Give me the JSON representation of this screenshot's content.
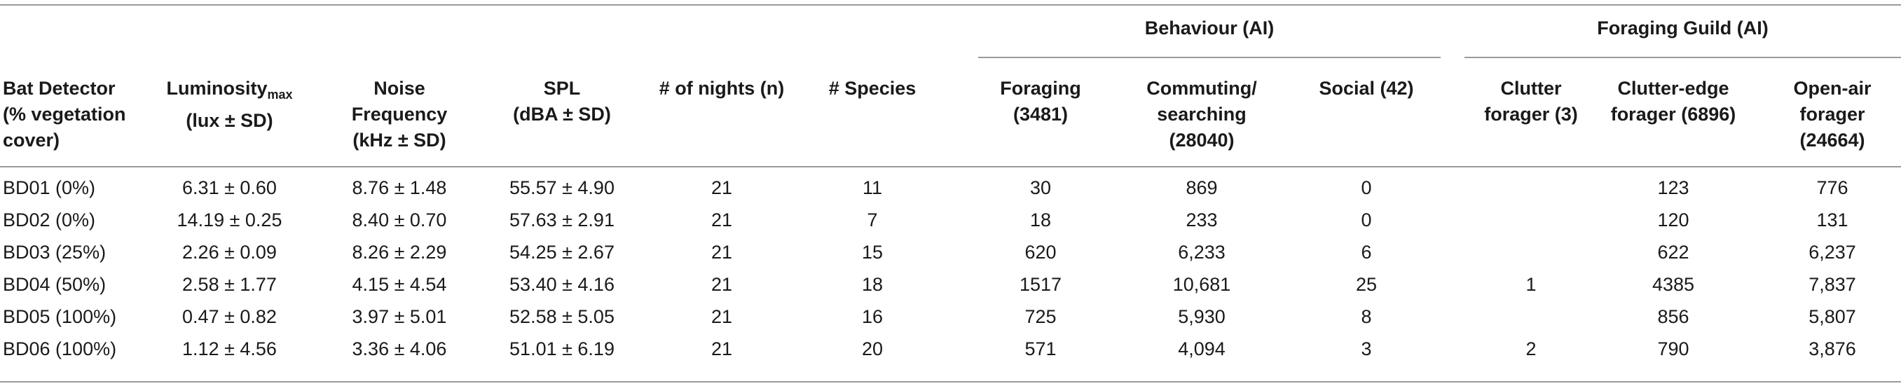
{
  "group_headers": {
    "behaviour": "Behaviour (AI)",
    "foraging_guild": "Foraging Guild (AI)"
  },
  "columns": {
    "bat_detector": [
      "Bat Detector",
      "(% vegetation",
      "cover)"
    ],
    "luminosity_main": "Luminosity",
    "luminosity_sub": "max",
    "luminosity_unit": "(lux ± SD)",
    "noise": [
      "Noise",
      "Frequency",
      "(kHz ± SD)"
    ],
    "spl": [
      "SPL",
      "(dBA ± SD)"
    ],
    "nights": "# of nights (n)",
    "species": "# Species",
    "foraging": [
      "Foraging",
      "(3481)"
    ],
    "commuting": [
      "Commuting/",
      "searching",
      "(28040)"
    ],
    "social": "Social (42)",
    "clutter": [
      "Clutter",
      "forager (3)"
    ],
    "clutter_edge": [
      "Clutter-edge",
      "forager (6896)"
    ],
    "open_air": [
      "Open-air",
      "forager",
      "(24664)"
    ]
  },
  "rows": [
    {
      "detector": "BD01 (0%)",
      "luminosity": "6.31 ± 0.60",
      "noise": "8.76 ± 1.48",
      "spl": "55.57 ± 4.90",
      "nights": "21",
      "species": "11",
      "foraging": "30",
      "commuting": "869",
      "social": "0",
      "clutter": "",
      "clutter_edge": "123",
      "open_air": "776"
    },
    {
      "detector": "BD02 (0%)",
      "luminosity": "14.19 ± 0.25",
      "noise": "8.40 ± 0.70",
      "spl": "57.63 ± 2.91",
      "nights": "21",
      "species": "7",
      "foraging": "18",
      "commuting": "233",
      "social": "0",
      "clutter": "",
      "clutter_edge": "120",
      "open_air": "131"
    },
    {
      "detector": "BD03 (25%)",
      "luminosity": "2.26 ± 0.09",
      "noise": "8.26 ± 2.29",
      "spl": "54.25 ± 2.67",
      "nights": "21",
      "species": "15",
      "foraging": "620",
      "commuting": "6,233",
      "social": "6",
      "clutter": "",
      "clutter_edge": "622",
      "open_air": "6,237"
    },
    {
      "detector": "BD04 (50%)",
      "luminosity": "2.58 ± 1.77",
      "noise": "4.15 ± 4.54",
      "spl": "53.40 ± 4.16",
      "nights": "21",
      "species": "18",
      "foraging": "1517",
      "commuting": "10,681",
      "social": "25",
      "clutter": "1",
      "clutter_edge": "4385",
      "open_air": "7,837"
    },
    {
      "detector": "BD05 (100%)",
      "luminosity": "0.47 ± 0.82",
      "noise": "3.97 ± 5.01",
      "spl": "52.58 ± 5.05",
      "nights": "21",
      "species": "16",
      "foraging": "725",
      "commuting": "5,930",
      "social": "8",
      "clutter": "",
      "clutter_edge": "856",
      "open_air": "5,807"
    },
    {
      "detector": "BD06 (100%)",
      "luminosity": "1.12 ± 4.56",
      "noise": "3.36 ± 4.06",
      "spl": "51.01 ± 6.19",
      "nights": "21",
      "species": "20",
      "foraging": "571",
      "commuting": "4,094",
      "social": "3",
      "clutter": "2",
      "clutter_edge": "790",
      "open_air": "3,876"
    }
  ]
}
